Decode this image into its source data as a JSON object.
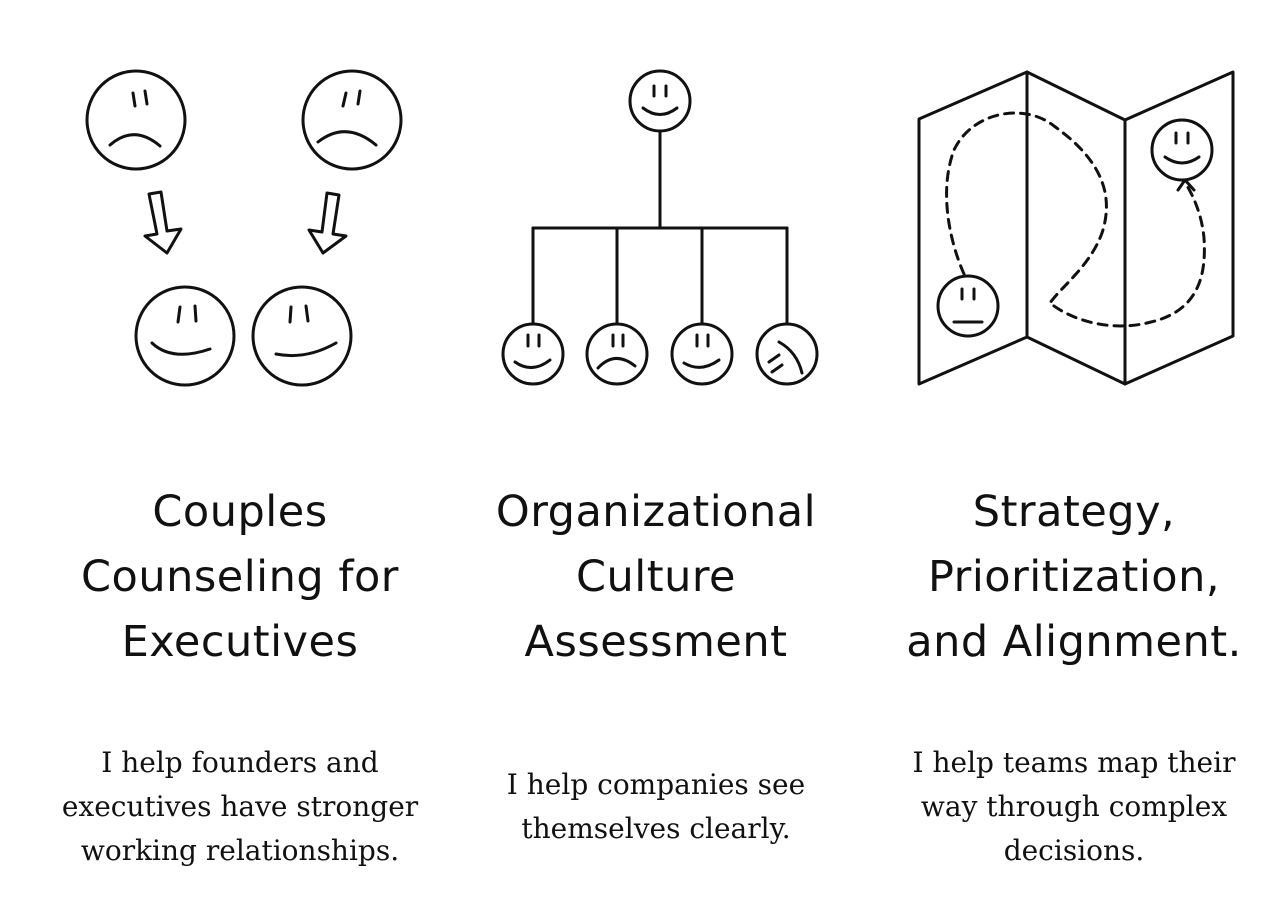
{
  "services": [
    {
      "icon": "couples-faces-illustration",
      "title_lines": [
        "Couples",
        "Counseling for",
        "Executives"
      ],
      "description_lines": [
        "I help founders and",
        "executives have stronger",
        "working relationships."
      ]
    },
    {
      "icon": "org-chart-faces-illustration",
      "title_lines": [
        "Organizational",
        "Culture",
        "Assessment"
      ],
      "description_lines": [
        "I help companies see",
        "themselves clearly."
      ]
    },
    {
      "icon": "map-path-illustration",
      "title_lines": [
        "Strategy,",
        "Prioritization,",
        "and Alignment."
      ],
      "description_lines": [
        "I help teams map their",
        "way through complex",
        "decisions."
      ]
    }
  ]
}
